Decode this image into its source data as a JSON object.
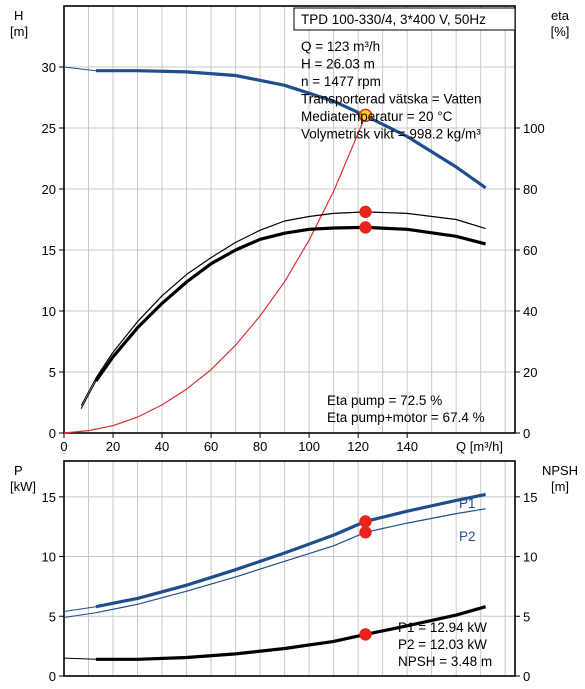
{
  "chart_data": [
    {
      "type": "line",
      "title": "TPD 100-330/4, 3*400 V, 50Hz",
      "left_axis": {
        "label": "H",
        "unit": "[m]",
        "range": [
          0,
          35
        ],
        "ticks": [
          0,
          5,
          10,
          15,
          20,
          25,
          30
        ]
      },
      "right_axis": {
        "label": "eta",
        "unit": "[%]",
        "range": [
          0,
          140
        ],
        "ticks": [
          0,
          20,
          40,
          60,
          80,
          100
        ]
      },
      "x_axis": {
        "label": "Q [m³/h]",
        "range": [
          0,
          184
        ],
        "ticks": [
          0,
          20,
          40,
          60,
          80,
          100,
          120,
          140
        ]
      },
      "grid": true,
      "operating_point": {
        "lines": [
          "Q = 123 m³/h",
          "H = 26.03 m",
          "n = 1477 rpm",
          "Transporterad vätska = Vatten",
          "Mediatemperatur = 20 °C",
          "Volymetrisk vikt = 998.2 kg/m³"
        ],
        "q": 123,
        "h": 26.03
      },
      "efficiency_text": [
        "Eta pump = 72.5 %",
        "Eta pump+motor = 67.4 %"
      ],
      "series": [
        {
          "axis": "left",
          "color": "#1f4e8c",
          "weight": "thick",
          "x": [
            13,
            30,
            50,
            70,
            90,
            110,
            123,
            140,
            160,
            172
          ],
          "y": [
            29.7,
            29.7,
            29.6,
            29.3,
            28.5,
            27.2,
            26.0,
            24.3,
            21.8,
            20.1
          ],
          "extension": {
            "x": [
              0,
              13
            ],
            "y": [
              30.0,
              29.7
            ]
          }
        },
        {
          "axis": "left",
          "color": "#e03030",
          "weight": "thin",
          "x": [
            0,
            10,
            20,
            30,
            40,
            50,
            60,
            70,
            80,
            90,
            100,
            110,
            123
          ],
          "y": [
            0,
            0.2,
            0.6,
            1.3,
            2.3,
            3.6,
            5.2,
            7.2,
            9.6,
            12.4,
            15.8,
            19.8,
            26.0
          ]
        },
        {
          "axis": "right",
          "color": "#000000",
          "weight": "thin",
          "x": [
            13,
            20,
            30,
            40,
            50,
            60,
            70,
            80,
            90,
            100,
            110,
            123,
            140,
            160,
            172
          ],
          "y": [
            18,
            26.5,
            36.5,
            45,
            52,
            57.5,
            62.5,
            66.5,
            69.5,
            71,
            72,
            72.5,
            72,
            70,
            67
          ],
          "extension": {
            "x": [
              7,
              13
            ],
            "y": [
              9,
              18
            ]
          }
        },
        {
          "axis": "right",
          "color": "#000000",
          "weight": "thick",
          "x": [
            13,
            20,
            30,
            40,
            50,
            60,
            70,
            80,
            90,
            100,
            110,
            123,
            140,
            160,
            172
          ],
          "y": [
            17,
            25,
            34.5,
            42.5,
            49.5,
            55.5,
            60,
            63.5,
            65.5,
            66.8,
            67.2,
            67.4,
            66.8,
            64.5,
            62
          ],
          "extension": {
            "x": [
              7,
              13
            ],
            "y": [
              8,
              17
            ]
          }
        }
      ],
      "markers": [
        {
          "axis": "left",
          "x": 123,
          "y": 26.03,
          "fill": "#ffd700",
          "stroke": "#e03030"
        },
        {
          "axis": "right",
          "x": 123,
          "y": 72.5,
          "fill": "#e8231b"
        },
        {
          "axis": "right",
          "x": 123,
          "y": 67.4,
          "fill": "#e8231b"
        }
      ]
    },
    {
      "type": "line",
      "left_axis": {
        "label": "P",
        "unit": "[kW]",
        "range": [
          0,
          18
        ],
        "ticks": [
          0,
          5,
          10,
          15
        ]
      },
      "right_axis": {
        "label": "NPSH",
        "unit": "[m]",
        "range": [
          0,
          18
        ],
        "ticks": [
          0,
          5,
          10,
          15
        ]
      },
      "x_axis": {
        "range": [
          0,
          184
        ]
      },
      "grid": true,
      "series": [
        {
          "name": "P1",
          "axis": "left",
          "color": "#1f4e8c",
          "weight": "thick",
          "x": [
            13,
            30,
            50,
            70,
            90,
            110,
            123,
            140,
            160,
            172
          ],
          "y": [
            5.8,
            6.5,
            7.6,
            8.9,
            10.3,
            11.8,
            12.94,
            13.8,
            14.7,
            15.2
          ],
          "extension": {
            "x": [
              0,
              13
            ],
            "y": [
              5.4,
              5.8
            ]
          }
        },
        {
          "name": "P2",
          "axis": "left",
          "color": "#1f4e8c",
          "weight": "thin",
          "x": [
            13,
            30,
            50,
            70,
            90,
            110,
            123,
            140,
            160,
            172
          ],
          "y": [
            5.3,
            6.0,
            7.1,
            8.3,
            9.6,
            10.9,
            12.03,
            12.8,
            13.6,
            14.0
          ],
          "extension": {
            "x": [
              0,
              13
            ],
            "y": [
              4.9,
              5.3
            ]
          }
        },
        {
          "axis": "right",
          "color": "#000000",
          "weight": "thick",
          "x": [
            13,
            30,
            50,
            70,
            90,
            110,
            123,
            140,
            160,
            172
          ],
          "y": [
            1.4,
            1.4,
            1.55,
            1.85,
            2.3,
            2.9,
            3.48,
            4.2,
            5.1,
            5.8
          ],
          "extension": {
            "x": [
              0,
              13
            ],
            "y": [
              1.5,
              1.4
            ]
          }
        }
      ],
      "markers": [
        {
          "axis": "left",
          "x": 123,
          "y": 12.94,
          "fill": "#e8231b"
        },
        {
          "axis": "left",
          "x": 123,
          "y": 12.03,
          "fill": "#e8231b"
        },
        {
          "axis": "right",
          "x": 123,
          "y": 3.48,
          "fill": "#e8231b"
        }
      ],
      "readout": [
        "P1 = 12.94 kW",
        "P2 = 12.03 kW",
        "NPSH = 3.48 m"
      ]
    }
  ]
}
